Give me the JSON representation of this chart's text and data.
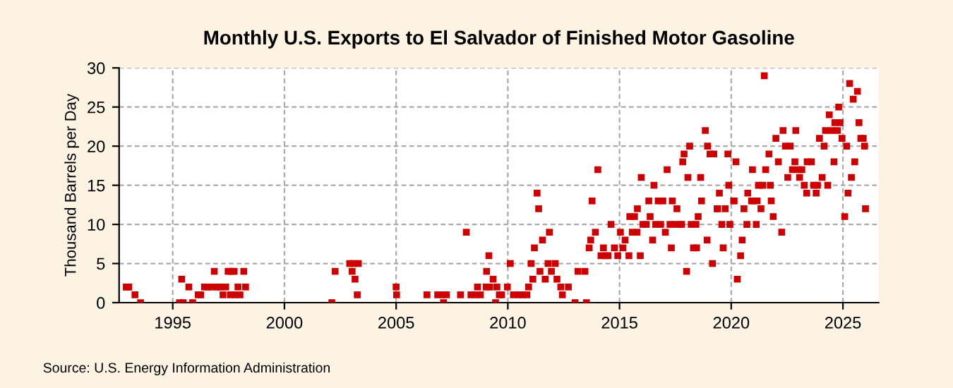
{
  "chart_data": {
    "type": "scatter",
    "title": "Monthly U.S. Exports to El Salvador of Finished Motor Gasoline",
    "ylabel": "Thousand Barrels per Day",
    "annotations": [
      "Source: U.S. Energy Information Administration"
    ],
    "xlim": [
      1992.6,
      2026.6
    ],
    "xticks": [
      1995,
      2000,
      2005,
      2010,
      2015,
      2020,
      2025
    ],
    "ylim": [
      0,
      30
    ],
    "yticks": [
      0,
      5,
      10,
      15,
      20,
      25,
      30
    ],
    "grid": true,
    "marker": "square",
    "series": [
      {
        "color": "#cc0000",
        "x": [
          1992.92,
          1993.03,
          1993.31,
          1993.56,
          1995.3,
          1995.4,
          1995.47,
          1995.72,
          1995.89,
          1996.14,
          1996.25,
          1996.42,
          1996.57,
          1996.74,
          1996.86,
          1996.99,
          1997.12,
          1997.25,
          1997.37,
          1997.48,
          1997.58,
          1997.63,
          1997.75,
          1997.8,
          1997.92,
          1998.01,
          1998.18,
          1998.26,
          2002.12,
          2002.27,
          2002.92,
          2003.03,
          2003.09,
          2003.16,
          2003.26,
          2003.31,
          2005.0,
          2005.02,
          2006.38,
          2006.86,
          2007.08,
          2007.25,
          2007.12,
          2007.88,
          2008.14,
          2008.35,
          2008.56,
          2008.64,
          2008.77,
          2009.03,
          2009.05,
          2009.15,
          2009.19,
          2009.34,
          2009.45,
          2009.51,
          2009.62,
          2009.72,
          2009.98,
          2010.11,
          2010.25,
          2010.47,
          2010.68,
          2010.85,
          2010.93,
          2011.04,
          2011.12,
          2011.19,
          2011.31,
          2011.38,
          2011.44,
          2011.55,
          2011.67,
          2011.8,
          2011.86,
          2011.95,
          2012.12,
          2012.2,
          2012.37,
          2012.44,
          2012.71,
          2013.01,
          2013.14,
          2013.45,
          2013.52,
          2013.64,
          2013.71,
          2013.77,
          2013.92,
          2014.03,
          2014.17,
          2014.28,
          2014.39,
          2014.49,
          2014.62,
          2014.77,
          2014.92,
          2015.04,
          2015.15,
          2015.25,
          2015.42,
          2015.46,
          2015.57,
          2015.67,
          2015.78,
          2015.8,
          2015.93,
          2015.97,
          2016.05,
          2016.2,
          2016.31,
          2016.37,
          2016.48,
          2016.54,
          2016.62,
          2016.73,
          2016.84,
          2016.94,
          2017.05,
          2017.13,
          2017.26,
          2017.32,
          2017.36,
          2017.47,
          2017.57,
          2017.68,
          2017.78,
          2017.83,
          2017.89,
          2018.0,
          2018.06,
          2018.14,
          2018.21,
          2018.31,
          2018.42,
          2018.45,
          2018.52,
          2018.63,
          2018.67,
          2018.84,
          2018.92,
          2018.94,
          2019.05,
          2019.16,
          2019.22,
          2019.37,
          2019.39,
          2019.47,
          2019.58,
          2019.64,
          2019.73,
          2019.85,
          2019.89,
          2019.94,
          2020.11,
          2020.13,
          2020.21,
          2020.27,
          2020.42,
          2020.49,
          2020.57,
          2020.7,
          2020.74,
          2020.91,
          2020.95,
          2020.99,
          2021.12,
          2021.16,
          2021.22,
          2021.33,
          2021.41,
          2021.48,
          2021.54,
          2021.69,
          2021.75,
          2021.79,
          2021.88,
          2022.0,
          2022.11,
          2022.26,
          2022.32,
          2022.43,
          2022.53,
          2022.64,
          2022.74,
          2022.85,
          2022.89,
          2023.02,
          2023.06,
          2023.16,
          2023.27,
          2023.38,
          2023.4,
          2023.59,
          2023.69,
          2023.8,
          2023.86,
          2023.95,
          2024.07,
          2024.16,
          2024.22,
          2024.32,
          2024.39,
          2024.49,
          2024.6,
          2024.64,
          2024.75,
          2024.81,
          2024.87,
          2024.96,
          2025.08,
          2025.17,
          2025.23,
          2025.3,
          2025.38,
          2025.46,
          2025.53,
          2025.65,
          2025.72,
          2025.8,
          2025.91,
          2025.97,
          2026.01
        ],
        "values": [
          2,
          2,
          1,
          0,
          0,
          3,
          0,
          2,
          0,
          1,
          1,
          2,
          2,
          2,
          4,
          2,
          2,
          1,
          2,
          4,
          1,
          4,
          4,
          1,
          2,
          1,
          4,
          2,
          0,
          4,
          5,
          4,
          5,
          3,
          1,
          5,
          2,
          1,
          1,
          1,
          1,
          1,
          0,
          1,
          9,
          1,
          1,
          2,
          1,
          2,
          4,
          6,
          2,
          3,
          0,
          2,
          1,
          1,
          2,
          5,
          1,
          1,
          1,
          1,
          2,
          5,
          3,
          7,
          14,
          12,
          4,
          8,
          3,
          5,
          9,
          4,
          5,
          3,
          2,
          1,
          2,
          0,
          4,
          4,
          0,
          7,
          8,
          13,
          9,
          17,
          6,
          7,
          6,
          6,
          10,
          7,
          6,
          9,
          7,
          8,
          6,
          11,
          9,
          11,
          9,
          12,
          6,
          16,
          10,
          10,
          13,
          11,
          8,
          15,
          10,
          13,
          10,
          13,
          9,
          17,
          10,
          7,
          13,
          10,
          12,
          10,
          10,
          18,
          19,
          4,
          16,
          20,
          10,
          7,
          10,
          7,
          11,
          16,
          13,
          22,
          8,
          20,
          19,
          5,
          19,
          12,
          12,
          14,
          10,
          7,
          12,
          19,
          15,
          10,
          13,
          13,
          18,
          3,
          6,
          8,
          12,
          10,
          14,
          13,
          17,
          13,
          10,
          13,
          15,
          12,
          15,
          29,
          17,
          19,
          15,
          13,
          11,
          21,
          18,
          9,
          22,
          20,
          16,
          20,
          17,
          18,
          22,
          17,
          16,
          17,
          15,
          14,
          18,
          18,
          15,
          14,
          15,
          21,
          16,
          20,
          22,
          15,
          24,
          22,
          18,
          23,
          22,
          25,
          23,
          21,
          11,
          20,
          14,
          28,
          16,
          26,
          18,
          27,
          23,
          21,
          21,
          20,
          12
        ]
      }
    ]
  }
}
